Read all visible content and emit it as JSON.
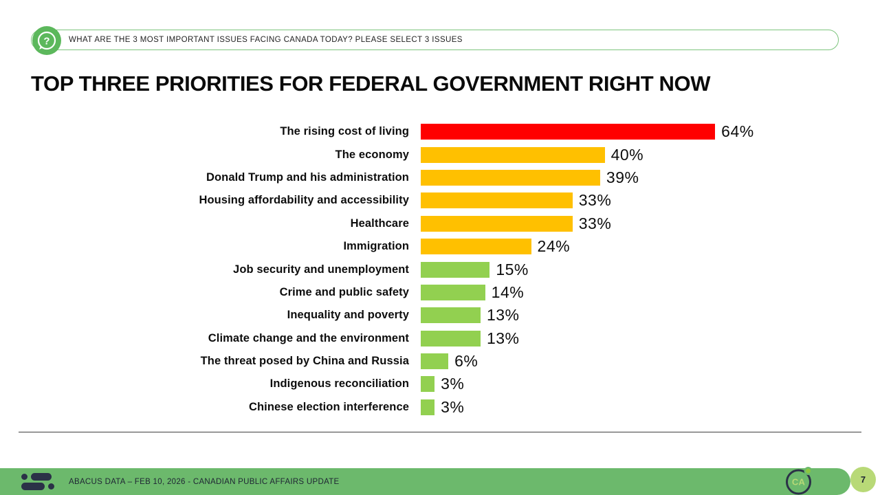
{
  "banner": {
    "icon": "question-bubble-icon",
    "text": "WHAT ARE THE 3 MOST IMPORTANT ISSUES FACING CANADA TODAY? PLEASE SELECT 3 ISSUES"
  },
  "title": "TOP THREE PRIORITIES FOR FEDERAL GOVERNMENT RIGHT NOW",
  "chart_data": {
    "type": "bar",
    "orientation": "horizontal",
    "title": "TOP THREE PRIORITIES FOR FEDERAL GOVERNMENT RIGHT NOW",
    "categories": [
      "The rising cost of living",
      "The economy",
      "Donald Trump and his administration",
      "Housing affordability and accessibility",
      "Healthcare",
      "Immigration",
      "Job security and unemployment",
      "Crime and public safety",
      "Inequality and poverty",
      "Climate change and the environment",
      "The threat posed by China and Russia",
      "Indigenous reconciliation",
      "Chinese election interference"
    ],
    "values": [
      64,
      40,
      39,
      33,
      33,
      24,
      15,
      14,
      13,
      13,
      6,
      3,
      3
    ],
    "data_labels": [
      "64%",
      "40%",
      "39%",
      "33%",
      "33%",
      "24%",
      "15%",
      "14%",
      "13%",
      "13%",
      "6%",
      "3%",
      "3%"
    ],
    "unit": "%",
    "bar_colors": [
      "#FF0000",
      "#FFC000",
      "#FFC000",
      "#FFC000",
      "#FFC000",
      "#FFC000",
      "#92D050",
      "#92D050",
      "#92D050",
      "#92D050",
      "#92D050",
      "#92D050",
      "#92D050"
    ],
    "xlim": [
      0,
      64
    ],
    "axes_visible": false,
    "grid": false,
    "legend": null,
    "data_label_position": "outside-end"
  },
  "footer": {
    "logo": "abacus-data-logo",
    "text": "ABACUS DATA – FEB 10, 2026 - CANADIAN PUBLIC AFFAIRS UPDATE",
    "ca_badge_label": "CA",
    "page_number": "7"
  },
  "colors": {
    "bar_red": "#FF0000",
    "bar_amber": "#FFC000",
    "bar_green": "#92D050",
    "banner_border": "#7CC47C",
    "icon_green": "#5CB85C",
    "footer_green": "#6CB96C",
    "navy": "#2B3147",
    "page_circle_green": "#B8D977"
  }
}
